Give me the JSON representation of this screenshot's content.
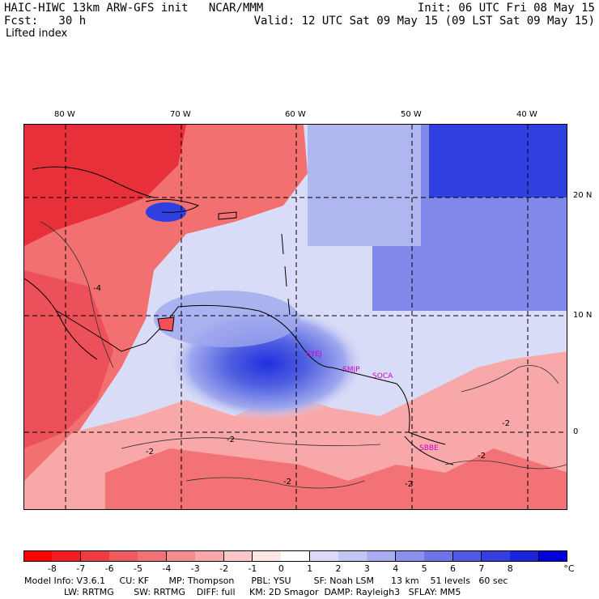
{
  "header": {
    "left_line1": "HAIC-HIWC 13km ARW-GFS init   NCAR/MMM",
    "left_line2": "Fcst:   30 h",
    "field": "Lifted index",
    "init": "Init: 06 UTC Fri 08 May 15",
    "valid": "Valid: 12 UTC Sat 09 May 15 (09 LST Sat 09 May 15)"
  },
  "map": {
    "lon_labels": [
      "80 W",
      "70 W",
      "60 W",
      "50 W",
      "40 W"
    ],
    "lat_labels": [
      "20 N",
      "10 N",
      "0"
    ],
    "contour_labels": [
      "-4",
      "-2",
      "-2",
      "-2",
      "-2",
      "-2",
      "-2"
    ],
    "stations": [
      "SYEJ",
      "SMJP",
      "SOCA",
      "SBBE"
    ],
    "colors": {
      "warm_dark": "#e8303a",
      "warm_mid": "#f07070",
      "warm_light": "#f8b0b0",
      "neutral": "#fbeaea",
      "cool_light": "#d4d8f6",
      "cool_mid": "#9fa8ee",
      "cool_dark": "#5060e0",
      "cool_deep": "#2030e0"
    }
  },
  "colorbar": {
    "tick_labels": [
      "-8",
      "-7",
      "-6",
      "-5",
      "-4",
      "-3",
      "-2",
      "-1",
      "0",
      "1",
      "2",
      "3",
      "4",
      "5",
      "6",
      "7",
      "8"
    ],
    "unit": "°C",
    "colors": [
      "#ff0000",
      "#f81c22",
      "#f33a40",
      "#ef5a5e",
      "#f27276",
      "#f58c8e",
      "#f8a8a9",
      "#fcc7c8",
      "#ffe6e6",
      "#ffffff",
      "#dcdcf8",
      "#c2c6f4",
      "#a8acf0",
      "#8a90ec",
      "#6c74e8",
      "#5058e6",
      "#343ee2",
      "#1a24de",
      "#0000dd"
    ]
  },
  "footer": {
    "line1": "Model Info: V3.6.1     CU: KF       MP: Thompson      PBL: YSU        SF: Noah LSM      13 km    51 levels   60 sec",
    "line2": "              LW: RRTMG       SW: RRTMG    DIFF: full     KM: 2D Smagor  DAMP: Rayleigh3   SFLAY: MM5"
  }
}
